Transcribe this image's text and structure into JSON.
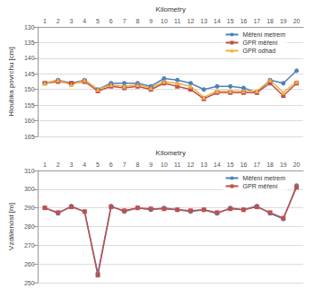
{
  "chart_data": [
    {
      "type": "line",
      "x_label": "Kilometry",
      "y_label": "Hloubka povrchu [cm]",
      "categories": [
        "1",
        "2",
        "3",
        "4",
        "5",
        "6",
        "7",
        "8",
        "9",
        "10",
        "11",
        "12",
        "13",
        "14",
        "15",
        "16",
        "17",
        "18",
        "19",
        "20"
      ],
      "ylim": [
        165,
        130
      ],
      "yticks": [
        130,
        135,
        140,
        145,
        150,
        155,
        160,
        165
      ],
      "grid": true,
      "legend": "upper right",
      "series": [
        {
          "name": "Měření metrem",
          "color": "#4f81bd",
          "marker": "circle",
          "values": [
            148,
            147,
            148,
            147,
            150,
            148,
            148,
            148,
            149,
            146.5,
            147,
            148,
            150,
            149,
            149,
            149.5,
            151,
            147,
            148,
            144
          ]
        },
        {
          "name": "GPR měření",
          "color": "#c0504d",
          "marker": "square",
          "values": [
            148,
            147.5,
            148,
            147.5,
            150.5,
            149,
            149.5,
            149,
            150,
            148,
            149,
            150,
            153,
            151,
            151,
            151,
            151,
            148,
            152,
            148
          ]
        },
        {
          "name": "GPR odhad",
          "color": "#f0b040",
          "marker": "triangle",
          "values": [
            148,
            147,
            148.5,
            147,
            150,
            148.5,
            149,
            148.5,
            149.5,
            147.5,
            148,
            149,
            152.5,
            150.5,
            150.5,
            150.5,
            150.5,
            147,
            151,
            147.5
          ]
        }
      ]
    },
    {
      "type": "line",
      "x_label": "Kilometry",
      "y_label": "Vzdálenost [m]",
      "categories": [
        "1",
        "2",
        "3",
        "4",
        "5",
        "6",
        "7",
        "8",
        "9",
        "10",
        "11",
        "12",
        "13",
        "14",
        "15",
        "16",
        "17",
        "18",
        "19",
        "20"
      ],
      "ylim": [
        250,
        310
      ],
      "yticks": [
        250,
        260,
        270,
        280,
        290,
        300,
        310
      ],
      "grid": true,
      "legend": "upper right",
      "series": [
        {
          "name": "Měření metrem",
          "color": "#4f81bd",
          "marker": "circle",
          "values": [
            290,
            287,
            291,
            288,
            255,
            291,
            288,
            290,
            289,
            290,
            289,
            288,
            289,
            287,
            290,
            289,
            291,
            287,
            284,
            302
          ]
        },
        {
          "name": "GPR měření",
          "color": "#c0504d",
          "marker": "square",
          "values": [
            290,
            287.5,
            290.5,
            288,
            254,
            290.5,
            288.5,
            290,
            289.5,
            289.5,
            289,
            288.5,
            289,
            287.5,
            289.5,
            289,
            290.5,
            287.5,
            284.5,
            301
          ]
        }
      ]
    }
  ]
}
